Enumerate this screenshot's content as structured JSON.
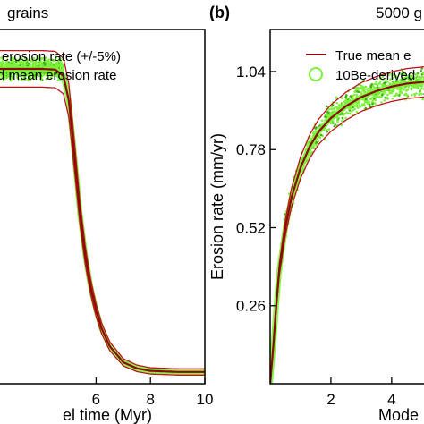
{
  "figure": {
    "left_title_fragment": "grains",
    "right_panel_letter": "(b)",
    "right_title_fragment": "5000 g"
  },
  "colors": {
    "true_mean": "#8b0a0a",
    "band": "#c0141b",
    "derived": "#7cf23a",
    "derived_dark": "#3fae13"
  },
  "chart_data": [
    {
      "type": "line",
      "title": "",
      "xlabel": "el time (Myr)",
      "ylabel": "",
      "xlim": [
        2.4,
        10
      ],
      "ylim": [
        0.14,
        1.13
      ],
      "xticks": [
        6,
        8,
        10
      ],
      "xtick_labels": [
        "6",
        "8",
        "10"
      ],
      "grid": false,
      "legend": {
        "placement": "top-left",
        "entries": [
          {
            "label": "erosion rate (+/-5%)",
            "color": "#c0141b",
            "marker": "line"
          },
          {
            "label": "d mean erosion rate",
            "color": "#7cf23a",
            "marker": "circle"
          }
        ]
      },
      "series": [
        {
          "role": "true_mean",
          "x": [
            2.4,
            3.0,
            3.5,
            4.0,
            4.5,
            4.8,
            5.0,
            5.2,
            5.4,
            5.6,
            5.8,
            6.0,
            6.2,
            6.5,
            7.0,
            7.5,
            8.0,
            9.0,
            10.0
          ],
          "values": [
            1.02,
            1.02,
            1.02,
            1.02,
            1.018,
            1.0,
            0.93,
            0.78,
            0.62,
            0.5,
            0.41,
            0.345,
            0.295,
            0.245,
            0.2,
            0.183,
            0.176,
            0.173,
            0.173
          ]
        }
      ],
      "band_pct": 5,
      "derived_scatter": {
        "x_range": [
          2.4,
          4.8
        ],
        "center": 1.02,
        "spread": 0.018
      }
    },
    {
      "type": "line",
      "title": "",
      "xlabel": "Mode",
      "ylabel": "Erosion rate (mm/yr)",
      "xlim": [
        0,
        5.3
      ],
      "ylim": [
        0,
        1.18
      ],
      "xticks": [
        2,
        4
      ],
      "xtick_labels": [
        "2",
        "4"
      ],
      "yticks": [
        0.26,
        0.52,
        0.78,
        1.04
      ],
      "ytick_labels": [
        "0.26",
        "0.52",
        "0.78",
        "1.04"
      ],
      "grid": false,
      "legend": {
        "placement": "top-right",
        "entries": [
          {
            "label": "True mean e",
            "color": "#8b0a0a",
            "marker": "line"
          },
          {
            "label": "10Be-derived",
            "color": "#7cf23a",
            "marker": "circle"
          }
        ]
      },
      "series": [
        {
          "role": "true_mean",
          "x": [
            0,
            0.1,
            0.2,
            0.3,
            0.5,
            0.7,
            1.0,
            1.3,
            1.6,
            2.0,
            2.5,
            3.0,
            3.5,
            4.0,
            4.5,
            5.0,
            5.3
          ],
          "values": [
            0.0,
            0.12,
            0.26,
            0.38,
            0.52,
            0.62,
            0.72,
            0.79,
            0.84,
            0.885,
            0.925,
            0.955,
            0.975,
            0.99,
            1.0,
            1.005,
            1.008
          ]
        }
      ],
      "band_pct": 5,
      "derived_scatter": {
        "x_range": [
          0.35,
          5.3
        ],
        "spread": 0.03
      }
    }
  ]
}
